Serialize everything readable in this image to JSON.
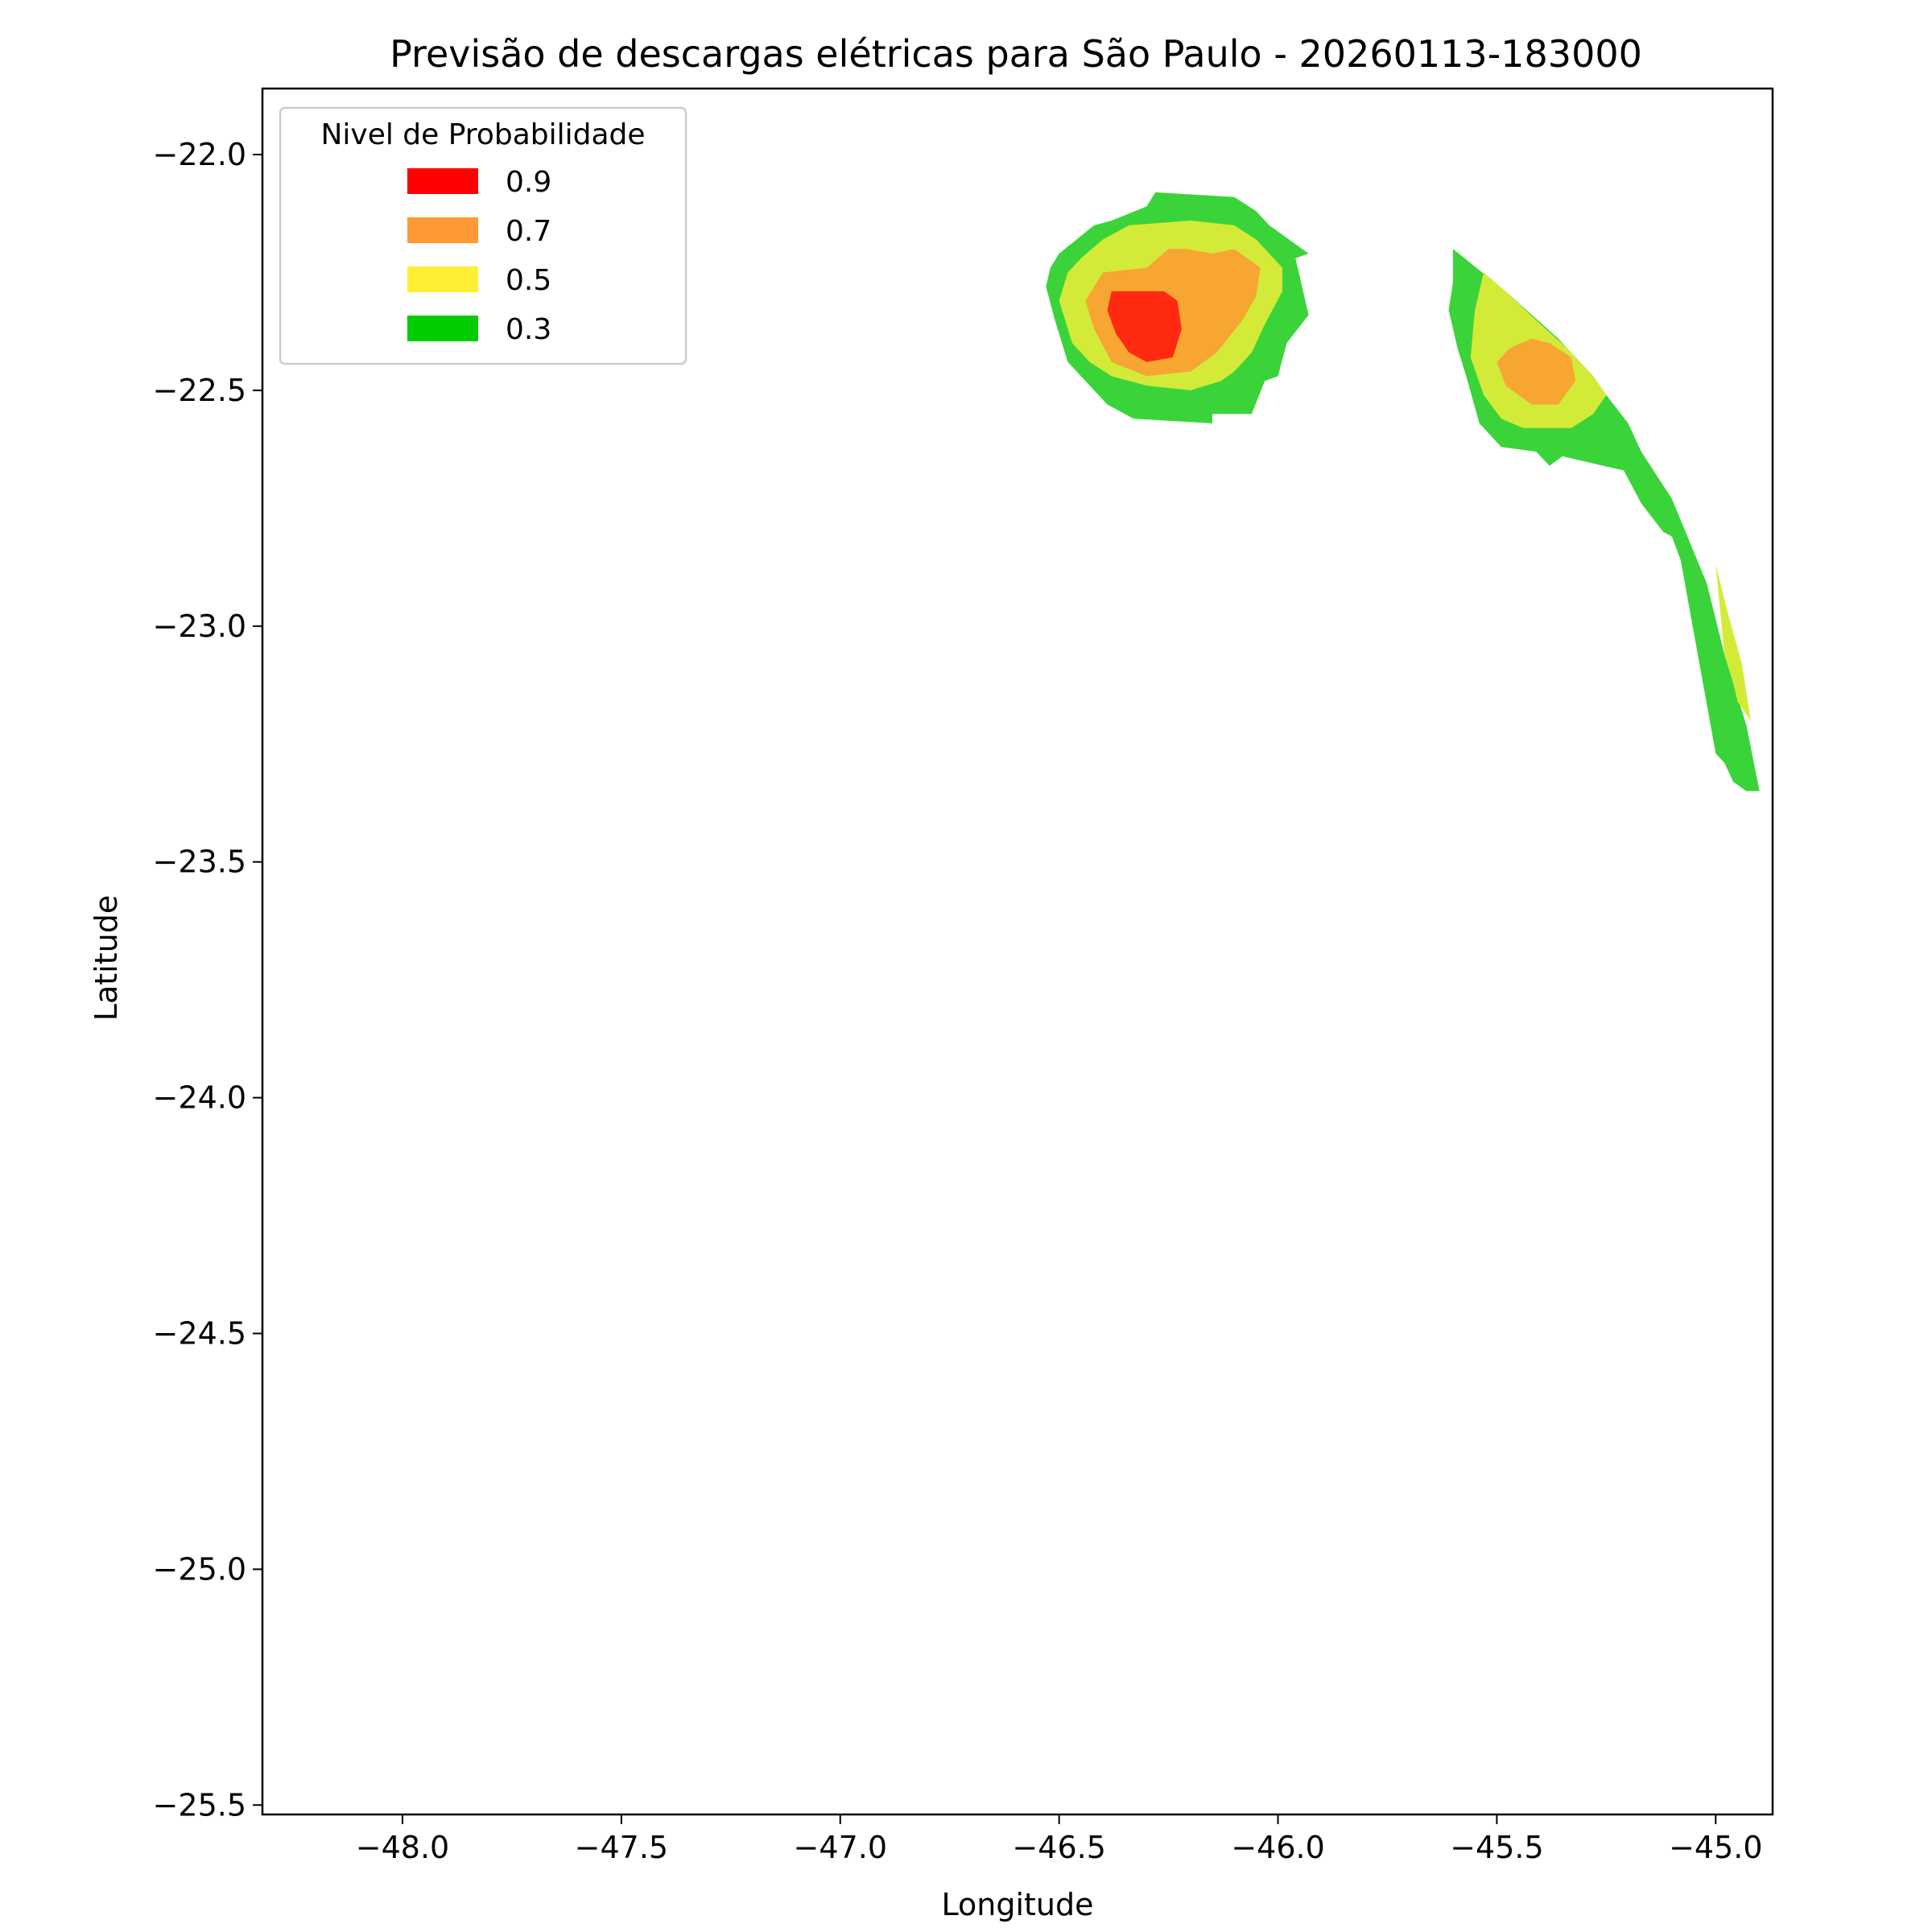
{
  "chart_data": {
    "type": "contour",
    "title": "Previsão de descargas elétricas para São Paulo - 20260113-183000",
    "xlabel": "Longitude",
    "ylabel": "Latitude",
    "xlim": [
      -48.32,
      -44.87
    ],
    "ylim": [
      -25.52,
      -21.86
    ],
    "x_ticks": [
      -48.0,
      -47.5,
      -47.0,
      -46.5,
      -46.0,
      -45.5,
      -45.0
    ],
    "x_tick_labels": [
      "−48.0",
      "−47.5",
      "−47.0",
      "−46.5",
      "−46.0",
      "−45.5",
      "−45.0"
    ],
    "y_ticks": [
      -22.0,
      -22.5,
      -23.0,
      -23.5,
      -24.0,
      -24.5,
      -25.0,
      -25.5
    ],
    "y_tick_labels": [
      "−22.0",
      "−22.5",
      "−23.0",
      "−23.5",
      "−24.0",
      "−24.5",
      "−25.0",
      "−25.5"
    ],
    "grid": false,
    "legend": {
      "title": "Nivel de Probabilidade",
      "placement": "top-left",
      "entries": [
        {
          "label": "0.9",
          "color": "#ff0000"
        },
        {
          "label": "0.7",
          "color": "#ff9933"
        },
        {
          "label": "0.5",
          "color": "#ffee33"
        },
        {
          "label": "0.3",
          "color": "#00cc00"
        }
      ]
    },
    "levels": [
      {
        "level": "0.3",
        "color": "#3ad43a",
        "polygons": [
          [
            [
              -46.28,
              -22.08
            ],
            [
              -46.1,
              -22.09
            ],
            [
              -46.05,
              -22.12
            ],
            [
              -46.02,
              -22.15
            ],
            [
              -45.96,
              -22.19
            ],
            [
              -45.93,
              -22.21
            ],
            [
              -45.96,
              -22.22
            ],
            [
              -45.93,
              -22.34
            ],
            [
              -45.98,
              -22.4
            ],
            [
              -46.0,
              -22.47
            ],
            [
              -46.03,
              -22.48
            ],
            [
              -46.06,
              -22.55
            ],
            [
              -46.15,
              -22.55
            ],
            [
              -46.15,
              -22.57
            ],
            [
              -46.33,
              -22.56
            ],
            [
              -46.39,
              -22.53
            ],
            [
              -46.41,
              -22.51
            ],
            [
              -46.45,
              -22.47
            ],
            [
              -46.48,
              -22.44
            ],
            [
              -46.51,
              -22.35
            ],
            [
              -46.53,
              -22.28
            ],
            [
              -46.52,
              -22.24
            ],
            [
              -46.5,
              -22.21
            ],
            [
              -46.46,
              -22.18
            ],
            [
              -46.42,
              -22.15
            ],
            [
              -46.38,
              -22.14
            ],
            [
              -46.3,
              -22.11
            ]
          ],
          [
            [
              -45.6,
              -22.2
            ],
            [
              -45.48,
              -22.29
            ],
            [
              -45.36,
              -22.39
            ],
            [
              -45.28,
              -22.47
            ],
            [
              -45.25,
              -22.51
            ],
            [
              -45.2,
              -22.57
            ],
            [
              -45.17,
              -22.63
            ],
            [
              -45.1,
              -22.73
            ],
            [
              -45.06,
              -22.82
            ],
            [
              -45.02,
              -22.91
            ],
            [
              -44.98,
              -23.06
            ],
            [
              -44.93,
              -23.21
            ],
            [
              -44.9,
              -23.35
            ],
            [
              -44.93,
              -23.35
            ],
            [
              -44.96,
              -23.33
            ],
            [
              -44.98,
              -23.29
            ],
            [
              -45.0,
              -23.27
            ],
            [
              -45.08,
              -22.86
            ],
            [
              -45.1,
              -22.81
            ],
            [
              -45.12,
              -22.8
            ],
            [
              -45.17,
              -22.74
            ],
            [
              -45.21,
              -22.67
            ],
            [
              -45.35,
              -22.64
            ],
            [
              -45.38,
              -22.66
            ],
            [
              -45.41,
              -22.63
            ],
            [
              -45.49,
              -22.62
            ],
            [
              -45.54,
              -22.57
            ],
            [
              -45.57,
              -22.47
            ],
            [
              -45.59,
              -22.41
            ],
            [
              -45.61,
              -22.33
            ],
            [
              -45.6,
              -22.27
            ]
          ]
        ]
      },
      {
        "level": "0.5",
        "color": "#d3eb38",
        "polygons": [
          [
            [
              -46.34,
              -22.15
            ],
            [
              -46.2,
              -22.14
            ],
            [
              -46.1,
              -22.15
            ],
            [
              -46.05,
              -22.18
            ],
            [
              -45.99,
              -22.24
            ],
            [
              -45.99,
              -22.29
            ],
            [
              -46.03,
              -22.36
            ],
            [
              -46.06,
              -22.42
            ],
            [
              -46.1,
              -22.46
            ],
            [
              -46.13,
              -22.48
            ],
            [
              -46.2,
              -22.5
            ],
            [
              -46.3,
              -22.49
            ],
            [
              -46.38,
              -22.47
            ],
            [
              -46.43,
              -22.44
            ],
            [
              -46.47,
              -22.4
            ],
            [
              -46.5,
              -22.31
            ],
            [
              -46.48,
              -22.25
            ],
            [
              -46.45,
              -22.22
            ],
            [
              -46.4,
              -22.18
            ]
          ],
          [
            [
              -45.53,
              -22.25
            ],
            [
              -45.48,
              -22.29
            ],
            [
              -45.4,
              -22.36
            ],
            [
              -45.34,
              -22.41
            ],
            [
              -45.28,
              -22.47
            ],
            [
              -45.25,
              -22.51
            ],
            [
              -45.28,
              -22.55
            ],
            [
              -45.33,
              -22.58
            ],
            [
              -45.44,
              -22.58
            ],
            [
              -45.49,
              -22.56
            ],
            [
              -45.53,
              -22.51
            ],
            [
              -45.56,
              -22.43
            ],
            [
              -45.55,
              -22.33
            ]
          ],
          [
            [
              -45.0,
              -22.87
            ],
            [
              -44.97,
              -22.98
            ],
            [
              -44.94,
              -23.08
            ],
            [
              -44.92,
              -23.2
            ],
            [
              -44.95,
              -23.16
            ],
            [
              -44.96,
              -23.12
            ],
            [
              -44.98,
              -23.06
            ]
          ]
        ]
      },
      {
        "level": "0.7",
        "color": "#f7a632",
        "polygons": [
          [
            [
              -46.25,
              -22.2
            ],
            [
              -46.21,
              -22.2
            ],
            [
              -46.15,
              -22.21
            ],
            [
              -46.1,
              -22.2
            ],
            [
              -46.04,
              -22.24
            ],
            [
              -46.05,
              -22.3
            ],
            [
              -46.08,
              -22.35
            ],
            [
              -46.14,
              -22.42
            ],
            [
              -46.2,
              -22.46
            ],
            [
              -46.3,
              -22.47
            ],
            [
              -46.38,
              -22.44
            ],
            [
              -46.42,
              -22.37
            ],
            [
              -46.44,
              -22.31
            ],
            [
              -46.4,
              -22.25
            ],
            [
              -46.3,
              -22.24
            ]
          ],
          [
            [
              -45.42,
              -22.39
            ],
            [
              -45.38,
              -22.4
            ],
            [
              -45.33,
              -22.43
            ],
            [
              -45.32,
              -22.48
            ],
            [
              -45.36,
              -22.53
            ],
            [
              -45.42,
              -22.53
            ],
            [
              -45.48,
              -22.49
            ],
            [
              -45.5,
              -22.44
            ],
            [
              -45.47,
              -22.41
            ]
          ]
        ]
      },
      {
        "level": "0.9",
        "color": "#ff2a10",
        "polygons": [
          [
            [
              -46.38,
              -22.29
            ],
            [
              -46.26,
              -22.29
            ],
            [
              -46.23,
              -22.31
            ],
            [
              -46.22,
              -22.37
            ],
            [
              -46.24,
              -22.43
            ],
            [
              -46.3,
              -22.44
            ],
            [
              -46.34,
              -22.42
            ],
            [
              -46.37,
              -22.38
            ],
            [
              -46.39,
              -22.33
            ]
          ]
        ]
      }
    ]
  }
}
